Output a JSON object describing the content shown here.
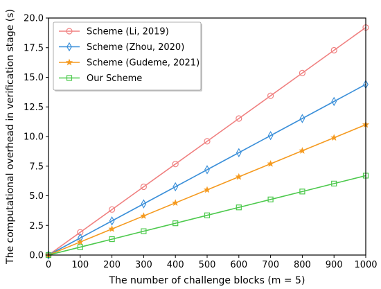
{
  "chart_data": {
    "type": "line",
    "xlabel": "The number of challenge blocks (m = 5)",
    "ylabel": "The computational overhead in verification stage (s)",
    "xlim": [
      0,
      1000
    ],
    "ylim": [
      0,
      20
    ],
    "x_ticks": [
      "0",
      "100",
      "200",
      "300",
      "400",
      "500",
      "600",
      "700",
      "800",
      "900",
      "1000"
    ],
    "y_ticks": [
      "0.0",
      "2.5",
      "5.0",
      "7.5",
      "10.0",
      "12.5",
      "15.0",
      "17.5",
      "20.0"
    ],
    "grid": false,
    "legend_position": "top-left",
    "x": [
      0,
      100,
      200,
      300,
      400,
      500,
      600,
      700,
      800,
      900,
      1000
    ],
    "series": [
      {
        "name": "Scheme (Li, 2019)",
        "color": "#f08080",
        "marker": "circle",
        "values": [
          0,
          1.92,
          3.84,
          5.76,
          7.68,
          9.6,
          11.52,
          13.44,
          15.36,
          17.28,
          19.2
        ]
      },
      {
        "name": "Scheme (Zhou, 2020)",
        "color": "#3a8fd9",
        "marker": "thin-diamond",
        "values": [
          0,
          1.44,
          2.88,
          4.32,
          5.76,
          7.2,
          8.64,
          10.08,
          11.52,
          12.96,
          14.4
        ]
      },
      {
        "name": "Scheme (Gudeme, 2021)",
        "color": "#f59a1f",
        "marker": "star",
        "values": [
          0,
          1.1,
          2.2,
          3.3,
          4.4,
          5.5,
          6.6,
          7.7,
          8.8,
          9.9,
          11.0
        ]
      },
      {
        "name": "Our Scheme",
        "color": "#4cc94c",
        "marker": "square",
        "values": [
          0,
          0.67,
          1.34,
          2.01,
          2.68,
          3.35,
          4.02,
          4.69,
          5.36,
          6.03,
          6.7
        ]
      }
    ]
  }
}
